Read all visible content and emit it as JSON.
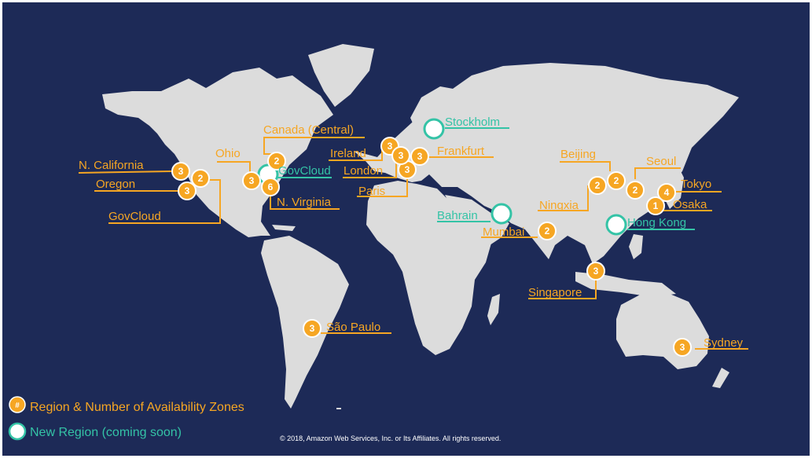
{
  "colors": {
    "background": "#1d2a57",
    "land": "#dcdcdc",
    "region": "#f6a623",
    "new_region": "#34c3a6",
    "copyright": "#ffffff"
  },
  "regions": [
    {
      "name": "N. California",
      "zones": "3"
    },
    {
      "name": "Oregon",
      "zones": "3"
    },
    {
      "name": "GovCloud",
      "zones": "2"
    },
    {
      "name": "Ohio",
      "zones": "3"
    },
    {
      "name": "N. Virginia",
      "zones": "6"
    },
    {
      "name": "Canada (Central)",
      "zones": "2"
    },
    {
      "name": "São Paulo",
      "zones": "3"
    },
    {
      "name": "Ireland",
      "zones": "3"
    },
    {
      "name": "London",
      "zones": "3"
    },
    {
      "name": "Paris",
      "zones": "3"
    },
    {
      "name": "Frankfurt",
      "zones": "3"
    },
    {
      "name": "Mumbai",
      "zones": "2"
    },
    {
      "name": "Singapore",
      "zones": "3"
    },
    {
      "name": "Beijing",
      "zones": "2"
    },
    {
      "name": "Ningxia",
      "zones": "2"
    },
    {
      "name": "Seoul",
      "zones": "2"
    },
    {
      "name": "Tokyo",
      "zones": "4"
    },
    {
      "name": "Osaka",
      "zones": "1"
    },
    {
      "name": "Sydney",
      "zones": "3"
    }
  ],
  "new_regions": [
    {
      "name": "GovCloud"
    },
    {
      "name": "Stockholm"
    },
    {
      "name": "Bahrain"
    },
    {
      "name": "Hong Kong"
    }
  ],
  "legend": {
    "region_symbol": "#",
    "region_label": "Region & Number of Availability Zones",
    "new_region_label": "New Region (coming soon)"
  },
  "copyright": "© 2018, Amazon Web Services, Inc. or Its Affiliates. All rights reserved."
}
